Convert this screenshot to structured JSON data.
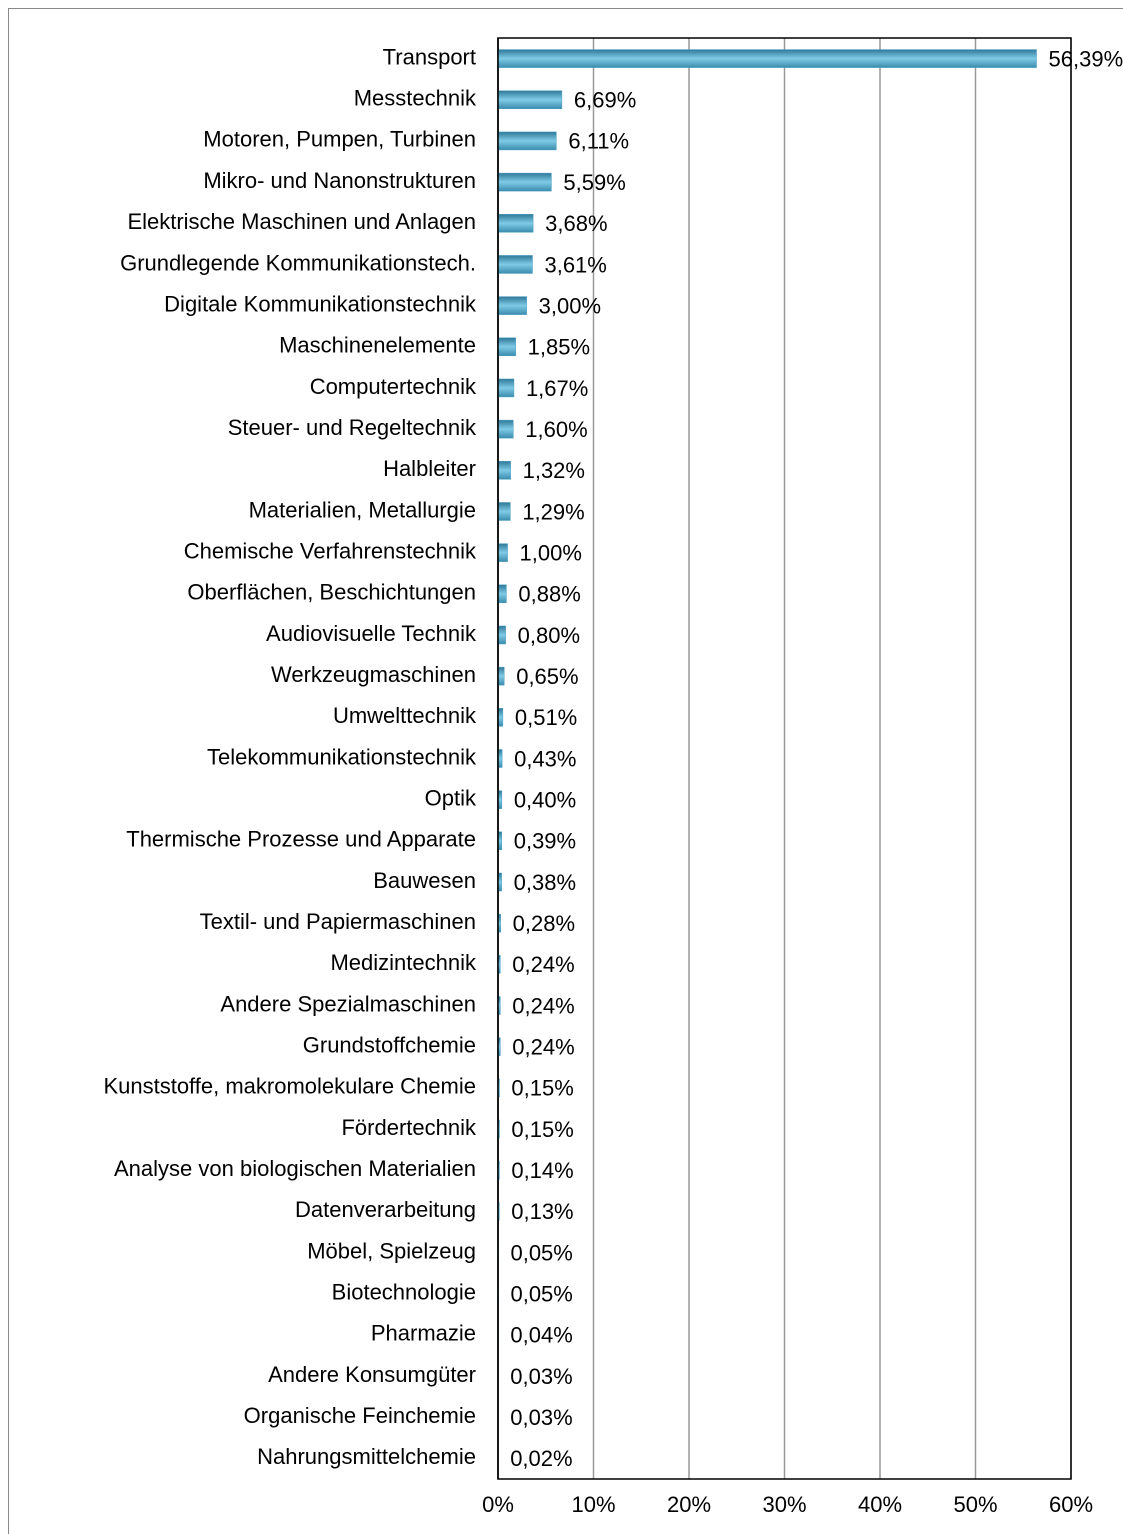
{
  "chart_data": {
    "type": "bar",
    "orientation": "horizontal",
    "categories": [
      "Transport",
      "Messtechnik",
      "Motoren, Pumpen, Turbinen",
      "Mikro- und Nanonstrukturen",
      "Elektrische Maschinen und Anlagen",
      "Grundlegende Kommunikationstech.",
      "Digitale Kommunikationstechnik",
      "Maschinenelemente",
      "Computertechnik",
      "Steuer- und Regeltechnik",
      "Halbleiter",
      "Materialien, Metallurgie",
      "Chemische Verfahrenstechnik",
      "Oberflächen, Beschichtungen",
      "Audiovisuelle Technik",
      "Werkzeugmaschinen",
      "Umwelttechnik",
      "Telekommunikationstechnik",
      "Optik",
      "Thermische Prozesse und Apparate",
      "Bauwesen",
      "Textil- und Papiermaschinen",
      "Medizintechnik",
      "Andere Spezialmaschinen",
      "Grundstoffchemie",
      "Kunststoffe, makromolekulare Chemie",
      "Fördertechnik",
      "Analyse von biologischen Materialien",
      "Datenverarbeitung",
      "Möbel, Spielzeug",
      "Biotechnologie",
      "Pharmazie",
      "Andere Konsumgüter",
      "Organische Feinchemie",
      "Nahrungsmittelchemie"
    ],
    "values": [
      56.39,
      6.69,
      6.11,
      5.59,
      3.68,
      3.61,
      3.0,
      1.85,
      1.67,
      1.6,
      1.32,
      1.29,
      1.0,
      0.88,
      0.8,
      0.65,
      0.51,
      0.43,
      0.4,
      0.39,
      0.38,
      0.28,
      0.24,
      0.24,
      0.24,
      0.15,
      0.15,
      0.14,
      0.13,
      0.05,
      0.05,
      0.04,
      0.03,
      0.03,
      0.02
    ],
    "value_labels": [
      "56,39%",
      "6,69%",
      "6,11%",
      "5,59%",
      "3,68%",
      "3,61%",
      "3,00%",
      "1,85%",
      "1,67%",
      "1,60%",
      "1,32%",
      "1,29%",
      "1,00%",
      "0,88%",
      "0,80%",
      "0,65%",
      "0,51%",
      "0,43%",
      "0,40%",
      "0,39%",
      "0,38%",
      "0,28%",
      "0,24%",
      "0,24%",
      "0,24%",
      "0,15%",
      "0,15%",
      "0,14%",
      "0,13%",
      "0,05%",
      "0,05%",
      "0,04%",
      "0,03%",
      "0,03%",
      "0,02%"
    ],
    "color": "#4a9fc2",
    "xlim": [
      0,
      60
    ],
    "xticks": [
      {
        "value": 0,
        "label": "0%"
      },
      {
        "value": 10,
        "label": "10%"
      },
      {
        "value": 20,
        "label": "20%"
      },
      {
        "value": 30,
        "label": "30%"
      },
      {
        "value": 40,
        "label": "40%"
      },
      {
        "value": 50,
        "label": "50%"
      },
      {
        "value": 60,
        "label": "60%"
      }
    ],
    "grid": true
  }
}
